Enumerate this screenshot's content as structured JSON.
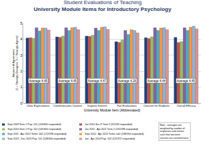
{
  "chart_data": {
    "type": "bar",
    "title": "Student Evaluations of Teaching",
    "subtitle": "University Module Items for Introductory Psychology",
    "xlabel": "University Module Item (Abbreviated)",
    "ylabel": [
      "Amount of Agreement",
      "(1 = Strongly Disagree, 5 = Strongly Agree)"
    ],
    "categories": [
      "Clear Expectations",
      "Communicates Content",
      "Inspires Interest",
      "Fair Evaluations",
      "Concern for Students",
      "Overall Efficacy"
    ],
    "series": [
      {
        "name": "Sept 2009 Term 1 Psyc 101 (103/400 responded)",
        "color": "#1f3f7a",
        "values": [
          4.08,
          4.15,
          4.2,
          3.85,
          4.1,
          4.12
        ]
      },
      {
        "name": "Jan 2010 Sec F Term 2 (91/243 responded)",
        "color": "#c0504d",
        "values": [
          4.1,
          4.12,
          4.18,
          3.8,
          4.05,
          3.8
        ]
      },
      {
        "name": "Sept 2010 Term 1 Psyc 101 (145/400 responded)",
        "color": "#9bbb59",
        "values": [
          4.06,
          4.2,
          4.25,
          3.95,
          4.15,
          3.85
        ]
      },
      {
        "name": "Jan 2011 - Apr 2011 Term 2 (131/298 responded)",
        "color": "#8064a2",
        "values": [
          4.72,
          4.72,
          4.7,
          4.55,
          4.72,
          4.72
        ]
      },
      {
        "name": "Sept 2011 - Apr 2012 Terms 1&2 (172/298 responded)",
        "color": "#4bacc6",
        "values": [
          4.52,
          4.55,
          4.55,
          4.3,
          4.55,
          4.55
        ]
      },
      {
        "name": "Sept 2012 - Apr 2013 Terms 1&2 (138/294 responded)",
        "color": "#f79646",
        "values": [
          4.7,
          4.72,
          4.75,
          4.6,
          4.7,
          4.75
        ]
      },
      {
        "name": "Sept 2013 - Dec 2013 Psyc 101 (208/344 responded)",
        "color": "#95b3d7",
        "values": [
          4.7,
          4.75,
          4.78,
          4.55,
          4.72,
          4.82
        ]
      },
      {
        "name": "Jan - Apr 2014 Psyc 102 (122/372 responded)",
        "color": "#d99694",
        "values": [
          4.58,
          4.6,
          4.62,
          4.4,
          4.6,
          4.65
        ]
      }
    ],
    "annotations": [
      "Average 4.45",
      "Average 4.45",
      "Average 4.47",
      "Average 4.26",
      "Average 4.44",
      "Average 4.45"
    ],
    "note": [
      "Note - averages are",
      "weighted by number of",
      "responses and entries",
      "such that two-term",
      "courses are counted twice."
    ],
    "ylim": [
      0,
      5
    ],
    "yticks": [
      0,
      1,
      2,
      3,
      4,
      5
    ],
    "grid": true,
    "legend": "bottom"
  }
}
